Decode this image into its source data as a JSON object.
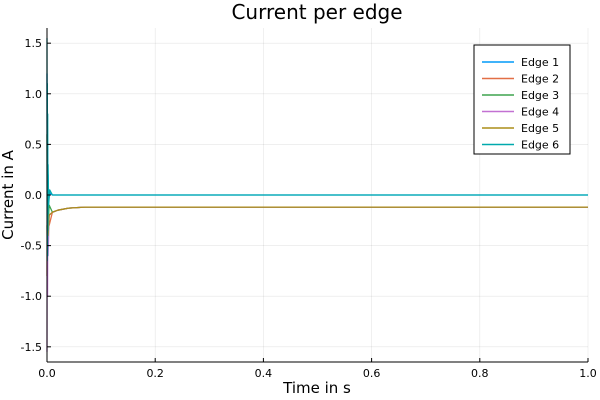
{
  "chart_data": {
    "type": "line",
    "title": "Current per edge",
    "xlabel": "Time in s",
    "ylabel": "Current in A",
    "xlim": [
      0,
      1
    ],
    "ylim": [
      -1.65,
      1.65
    ],
    "xticks": [
      0,
      0.2,
      0.4,
      0.6,
      0.8,
      1
    ],
    "xtick_labels": [
      "0.0",
      "0.2",
      "0.4",
      "0.6",
      "0.8",
      "1.0"
    ],
    "yticks": [
      -1.5,
      -1,
      -0.5,
      0,
      0.5,
      1,
      1.5
    ],
    "ytick_labels": [
      "-1.5",
      "-1.0",
      "-0.5",
      "0.0",
      "0.5",
      "1.0",
      "1.5"
    ],
    "grid": true,
    "legend_position": "top-right",
    "series": [
      {
        "name": "Edge 1",
        "color": "#009AF9",
        "x": [
          0,
          0.0005,
          0.001,
          0.0015,
          0.002,
          0.003,
          0.005,
          0.01,
          1
        ],
        "y": [
          1.2,
          -0.4,
          0.5,
          -0.2,
          0.2,
          -0.05,
          0.02,
          0,
          0
        ]
      },
      {
        "name": "Edge 2",
        "color": "#E26F46",
        "x": [
          0,
          0.0005,
          0.001,
          0.002,
          0.004,
          0.01,
          0.02,
          0.04,
          0.07,
          1
        ],
        "y": [
          -0.8,
          0.3,
          -0.6,
          -0.1,
          -0.3,
          -0.17,
          -0.15,
          -0.13,
          -0.12,
          -0.12
        ]
      },
      {
        "name": "Edge 3",
        "color": "#3EA44E",
        "x": [
          0,
          0.0005,
          0.001,
          0.002,
          0.004,
          0.01,
          0.02,
          0.04,
          0.07,
          1
        ],
        "y": [
          0.6,
          -0.5,
          0.3,
          -0.3,
          -0.1,
          -0.17,
          -0.15,
          -0.13,
          -0.12,
          -0.12
        ]
      },
      {
        "name": "Edge 4",
        "color": "#C271D2",
        "x": [
          0,
          0.0005,
          0.001,
          0.0015,
          0.002,
          0.004,
          0.01,
          0.02,
          0.04,
          0.07,
          1
        ],
        "y": [
          -1.55,
          0.2,
          -1.0,
          -0.2,
          -0.6,
          -0.2,
          -0.17,
          -0.15,
          -0.13,
          -0.12,
          -0.12
        ]
      },
      {
        "name": "Edge 5",
        "color": "#AC8D18",
        "x": [
          0,
          0.0005,
          0.001,
          0.002,
          0.004,
          0.01,
          0.02,
          0.04,
          0.07,
          1
        ],
        "y": [
          -0.3,
          -0.5,
          0.1,
          -0.4,
          -0.2,
          -0.17,
          -0.15,
          -0.13,
          -0.12,
          -0.12
        ]
      },
      {
        "name": "Edge 6",
        "color": "#00A9AD",
        "x": [
          0,
          0.0003,
          0.0006,
          0.001,
          0.0013,
          0.0016,
          0.002,
          0.003,
          0.005,
          0.01,
          1
        ],
        "y": [
          1.55,
          -0.65,
          1.1,
          -0.6,
          0.8,
          -0.35,
          0.3,
          -0.1,
          0.05,
          0,
          0
        ]
      }
    ]
  }
}
